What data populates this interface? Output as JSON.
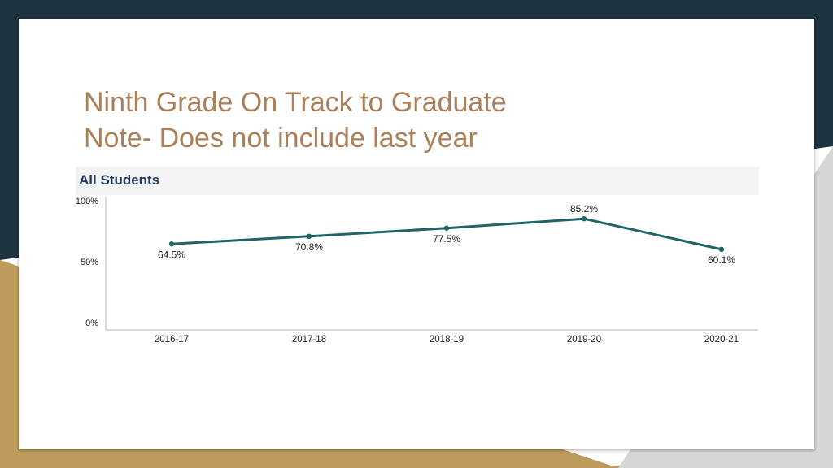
{
  "slide": {
    "title_line1": "Ninth Grade On Track to Graduate",
    "title_line2": "Note- Does not include last year",
    "colors": {
      "dark": "#1e3340",
      "gold": "#bf9b5b",
      "title": "#a9805a",
      "line": "#1f6466"
    }
  },
  "chart_header": {
    "label": "All Students"
  },
  "chart_data": {
    "type": "line",
    "categories": [
      "2016-17",
      "2017-18",
      "2018-19",
      "2019-20",
      "2020-21"
    ],
    "series": [
      {
        "values": [
          64.5,
          70.8,
          77.5,
          85.2,
          60.1
        ],
        "data_labels": [
          "64.5%",
          "70.8%",
          "77.5%",
          "85.2%",
          "60.1%"
        ]
      }
    ],
    "ylim": [
      0,
      100
    ],
    "y_ticks": [
      {
        "value": 0,
        "label": "0%"
      },
      {
        "value": 50,
        "label": "50%"
      },
      {
        "value": 100,
        "label": "100%"
      }
    ],
    "grid": false,
    "title": "",
    "xlabel": "",
    "ylabel": ""
  }
}
